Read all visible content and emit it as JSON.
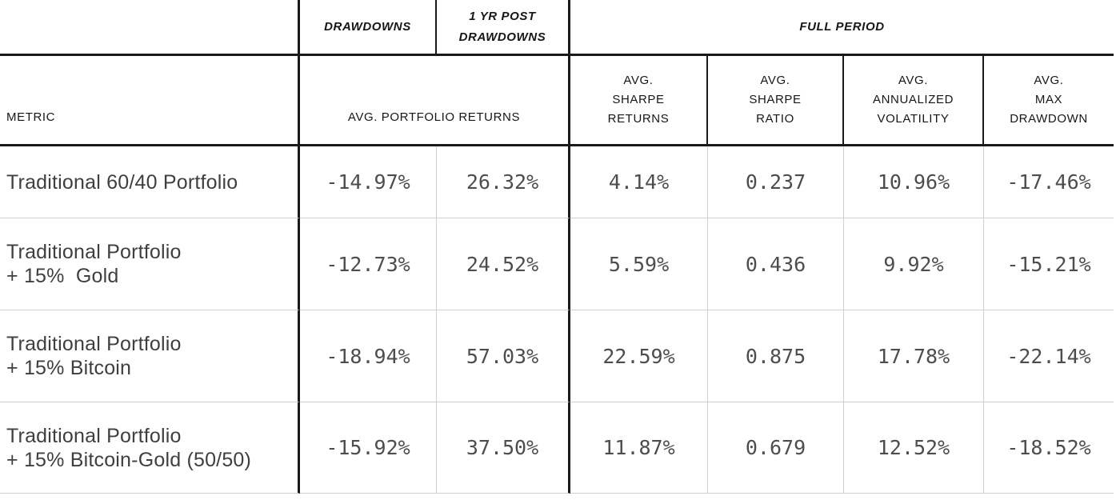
{
  "table": {
    "header_top": {
      "drawdowns": "DRAWDOWNS",
      "post_drawdowns": "1 YR POST\nDRAWDOWNS",
      "full_period": "FULL PERIOD"
    },
    "header_cols": {
      "metric": "METRIC",
      "avg_portfolio_returns": "AVG. PORTFOLIO RETURNS",
      "avg_sharpe_returns": "AVG.\nSHARPE\nRETURNS",
      "avg_sharpe_ratio": "AVG.\nSHARPE\nRATIO",
      "avg_annualized_volatility": "AVG.\nANNUALIZED\nVOLATILITY",
      "avg_max_drawdown": "AVG.\nMAX\nDRAWDOWN"
    },
    "rows": [
      {
        "label": "Traditional 60/40 Portfolio",
        "values": [
          "-14.97%",
          "26.32%",
          "4.14%",
          "0.237",
          "10.96%",
          "-17.46%"
        ]
      },
      {
        "label": "Traditional Portfolio\n+ 15%  Gold",
        "values": [
          "-12.73%",
          "24.52%",
          "5.59%",
          "0.436",
          "9.92%",
          "-15.21%"
        ]
      },
      {
        "label": "Traditional Portfolio\n+ 15% Bitcoin",
        "values": [
          "-18.94%",
          "57.03%",
          "22.59%",
          "0.875",
          "17.78%",
          "-22.14%"
        ]
      },
      {
        "label": "Traditional Portfolio\n+ 15% Bitcoin-Gold (50/50)",
        "values": [
          "-15.92%",
          "37.50%",
          "11.87%",
          "0.679",
          "12.52%",
          "-18.52%"
        ]
      }
    ]
  },
  "colors": {
    "grid_heavy": "#1a1a1a",
    "grid_light": "#cfcfcf",
    "label_text": "#3f3f3f",
    "number_text": "#4d4d4d",
    "header_text": "#161616",
    "background": "#ffffff"
  },
  "chart_data": {
    "type": "table",
    "title": "Portfolio performance metrics: drawdowns, post-drawdown returns and full-period statistics",
    "column_groups": [
      "DRAWDOWNS",
      "1 YR POST DRAWDOWNS",
      "FULL PERIOD"
    ],
    "columns": [
      "METRIC",
      "AVG. PORTFOLIO RETURNS (DRAWDOWNS)",
      "AVG. PORTFOLIO RETURNS (1 YR POST DRAWDOWNS)",
      "AVG. SHARPE RETURNS",
      "AVG. SHARPE RATIO",
      "AVG. ANNUALIZED VOLATILITY",
      "AVG. MAX DRAWDOWN"
    ],
    "rows": [
      {
        "metric": "Traditional 60/40 Portfolio",
        "avg_return_drawdowns_pct": -14.97,
        "avg_return_1yr_post_pct": 26.32,
        "avg_sharpe_returns_pct": 4.14,
        "avg_sharpe_ratio": 0.237,
        "avg_annualized_volatility_pct": 10.96,
        "avg_max_drawdown_pct": -17.46
      },
      {
        "metric": "Traditional Portfolio + 15% Gold",
        "avg_return_drawdowns_pct": -12.73,
        "avg_return_1yr_post_pct": 24.52,
        "avg_sharpe_returns_pct": 5.59,
        "avg_sharpe_ratio": 0.436,
        "avg_annualized_volatility_pct": 9.92,
        "avg_max_drawdown_pct": -15.21
      },
      {
        "metric": "Traditional Portfolio + 15% Bitcoin",
        "avg_return_drawdowns_pct": -18.94,
        "avg_return_1yr_post_pct": 57.03,
        "avg_sharpe_returns_pct": 22.59,
        "avg_sharpe_ratio": 0.875,
        "avg_annualized_volatility_pct": 17.78,
        "avg_max_drawdown_pct": -22.14
      },
      {
        "metric": "Traditional Portfolio + 15% Bitcoin-Gold (50/50)",
        "avg_return_drawdowns_pct": -15.92,
        "avg_return_1yr_post_pct": 37.5,
        "avg_sharpe_returns_pct": 11.87,
        "avg_sharpe_ratio": 0.679,
        "avg_annualized_volatility_pct": 12.52,
        "avg_max_drawdown_pct": -18.52
      }
    ]
  }
}
